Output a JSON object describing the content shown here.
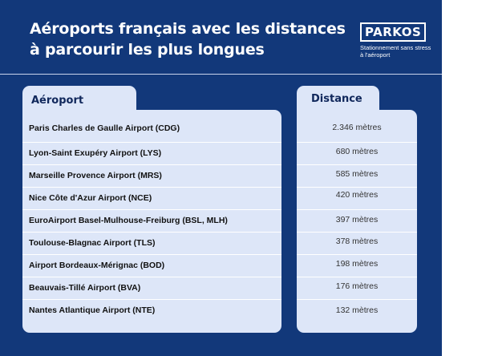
{
  "title": "Aéroports français avec les distances à parcourir les plus longues",
  "logo": {
    "brand": "PARKOS",
    "tagline": "Stationnement sans stress à l'aéroport"
  },
  "table": {
    "headers": {
      "airport": "Aéroport",
      "distance": "Distance"
    },
    "rows": [
      {
        "airport": "Paris Charles de Gaulle Airport (CDG)",
        "distance": "2.346 mètres"
      },
      {
        "airport": "Lyon-Saint Exupéry Airport (LYS)",
        "distance": "680 mètres"
      },
      {
        "airport": "Marseille Provence Airport (MRS)",
        "distance": "585 mètres"
      },
      {
        "airport": "Nice Côte d'Azur Airport (NCE)",
        "distance": "420 mètres"
      },
      {
        "airport": "EuroAirport Basel-Mulhouse-Freiburg (BSL, MLH)",
        "distance": "397 mètres"
      },
      {
        "airport": "Toulouse-Blagnac Airport (TLS)",
        "distance": "378 mètres"
      },
      {
        "airport": "Airport Bordeaux-Mérignac (BOD)",
        "distance": "198 mètres"
      },
      {
        "airport": "Beauvais-Tillé Airport (BVA)",
        "distance": "176 mètres"
      },
      {
        "airport": "Nantes Atlantique Airport (NTE)",
        "distance": "132 mètres"
      }
    ]
  },
  "colors": {
    "background": "#12387a",
    "table_fill": "#dde6f8",
    "row_separator": "#ffffff",
    "title_text": "#ffffff"
  }
}
